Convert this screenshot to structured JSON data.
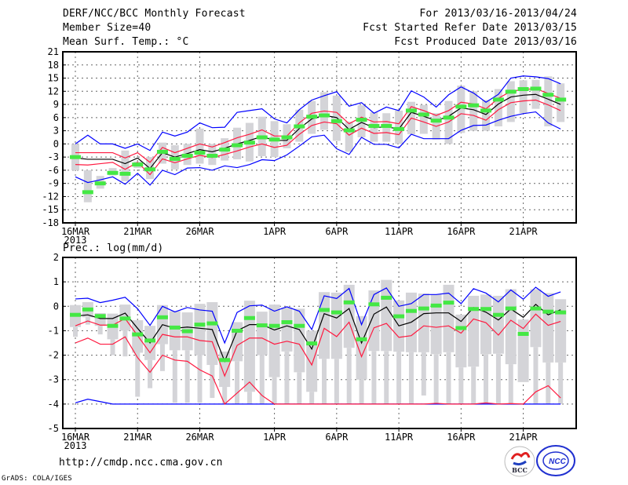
{
  "header": {
    "title": "DERF/NCC/BCC Monthly Forecast",
    "member_size": "Member Size=40",
    "variable": "Mean Surf. Temp.: °C",
    "period": "For 2013/03/16-2013/04/24",
    "started": "Fcst Started Refer Date 2013/03/15",
    "produced": "Fcst Produced Date 2013/03/16"
  },
  "footer": {
    "url": "http://cmdp.ncc.cma.gov.cn",
    "credit": "GrADS: COLA/IGES",
    "logo_bcc": "BCC",
    "logo_ncc": "NCC"
  },
  "colors": {
    "max_min": "#0000ff",
    "spread": "#ff1a40",
    "mean": "#000000",
    "member": "#44e844",
    "box": "#d4d4d8"
  },
  "chart_data": [
    {
      "type": "box-line",
      "title": "Mean Surf. Temp.: °C",
      "x_tick_labels": [
        "16MAR",
        "21MAR",
        "26MAR",
        "1APR",
        "6APR",
        "11APR",
        "16APR",
        "21APR"
      ],
      "x_tick_days": [
        0,
        5,
        10,
        16,
        21,
        26,
        31,
        36
      ],
      "year_label": "2013",
      "ylim": [
        -18,
        21
      ],
      "yticks": [
        21,
        18,
        15,
        12,
        9,
        6,
        3,
        0,
        -3,
        -6,
        -9,
        -12,
        -15,
        -18
      ],
      "grid": true,
      "n_days": 40,
      "mean": [
        -3.2,
        -3.5,
        -3.5,
        -3.5,
        -4.5,
        -3.2,
        -5.6,
        -2,
        -3,
        -2.2,
        -1.3,
        -1.8,
        -1,
        0,
        0.8,
        1.7,
        0.8,
        0.8,
        3.5,
        5.7,
        6.5,
        6.0,
        3.3,
        4.9,
        3.7,
        3.9,
        3.4,
        7.2,
        6.3,
        5.3,
        6.3,
        8.2,
        7.8,
        6.7,
        9.1,
        10.7,
        11.1,
        11.3,
        10.2,
        9.0
      ],
      "spread_upper": [
        -2,
        -2,
        -2,
        -2,
        -3.2,
        -2,
        -4.2,
        -0.8,
        -2,
        -1,
        0,
        -0.7,
        0.3,
        1.4,
        2.2,
        3.2,
        1.8,
        1.8,
        4.8,
        7,
        7.5,
        7.2,
        4.6,
        6.1,
        5,
        5.1,
        4.6,
        8.5,
        7.6,
        6.5,
        7.6,
        9.5,
        9.1,
        8,
        10.4,
        12,
        12.4,
        12.6,
        11.5,
        10.4
      ],
      "spread_lower": [
        -4.7,
        -4.8,
        -4.5,
        -4.2,
        -5.8,
        -4.2,
        -7,
        -3.4,
        -4.3,
        -3.4,
        -2.6,
        -3.1,
        -2.4,
        -1.6,
        -0.7,
        0,
        -0.8,
        -0.3,
        2.2,
        4.2,
        5,
        4.6,
        2,
        3.6,
        2.4,
        2.6,
        2.1,
        5.9,
        5,
        4,
        5,
        6.9,
        6.5,
        5.4,
        7.8,
        9.4,
        9.8,
        10,
        8.9,
        7.6
      ],
      "max": [
        0,
        2,
        0,
        0,
        -1,
        0,
        -1.5,
        2.7,
        1.8,
        2.7,
        4.8,
        3.7,
        3.8,
        7.2,
        7.6,
        8,
        5.7,
        4.8,
        7.8,
        10,
        11,
        11.9,
        8.6,
        9.4,
        7.0,
        8.4,
        7.6,
        12.1,
        10.7,
        8.4,
        11.2,
        13.0,
        11.6,
        9.5,
        11.3,
        15.0,
        15.5,
        15.3,
        14.9,
        13.7
      ],
      "min": [
        -7.5,
        -8.8,
        -8.2,
        -7.5,
        -9.2,
        -6.7,
        -9.4,
        -6,
        -7,
        -5.5,
        -5.4,
        -6,
        -5,
        -5.4,
        -4.7,
        -3.6,
        -3.8,
        -2.5,
        -0.5,
        1.6,
        2.0,
        -1.1,
        -2.4,
        1.5,
        -0.1,
        -0.1,
        -0.9,
        2.2,
        1.2,
        1.2,
        1.2,
        3.1,
        4.2,
        4.3,
        5.4,
        6.3,
        6.9,
        7.3,
        4.8,
        3.4
      ],
      "box_low": [
        -6,
        -13.3,
        -10.2,
        -7.2,
        -8.5,
        -5.5,
        -8,
        -4.5,
        -5.8,
        -4.8,
        -4.5,
        -4.8,
        -3.8,
        -3.5,
        -4,
        -2.8,
        -3,
        -1,
        0.5,
        2.3,
        3.2,
        0.7,
        -1.8,
        1.5,
        0.5,
        0.5,
        0,
        2.2,
        2.3,
        1,
        0,
        2.5,
        3,
        3,
        4,
        5,
        7,
        8,
        4,
        5
      ],
      "box_high": [
        0,
        -6,
        -7.3,
        -5.5,
        -1.5,
        -4,
        -3,
        0.3,
        -0.3,
        0,
        3.5,
        0,
        1.3,
        3.7,
        4.8,
        6.2,
        5.2,
        4.5,
        7.8,
        9.8,
        11.8,
        11,
        5.1,
        8.8,
        7.2,
        7,
        7.6,
        9.6,
        8.9,
        7,
        9.8,
        13.3,
        12,
        10,
        12.5,
        14.3,
        14.5,
        14.6,
        15.4,
        13.8
      ],
      "member": [
        -3,
        -11,
        -9,
        -6.6,
        -6.8,
        -4.7,
        -5.8,
        -1.8,
        -3.4,
        -2.7,
        -2,
        -2.7,
        -1.3,
        -0.3,
        0.3,
        1.5,
        1,
        1.5,
        4,
        6.2,
        6.5,
        5.2,
        3.1,
        5.5,
        4.1,
        4.1,
        3.4,
        7.6,
        6.7,
        5.3,
        6.0,
        8.5,
        8.8,
        7.6,
        10.1,
        11.9,
        12.5,
        12.6,
        11.2,
        10.1
      ]
    },
    {
      "type": "box-line",
      "title": "Prec.: log(mm/d)",
      "x_tick_labels": [
        "16MAR",
        "21MAR",
        "26MAR",
        "1APR",
        "6APR",
        "11APR",
        "16APR",
        "21APR"
      ],
      "x_tick_days": [
        0,
        5,
        10,
        16,
        21,
        26,
        31,
        36
      ],
      "year_label": "2013",
      "ylim": [
        -5,
        2
      ],
      "yticks": [
        2,
        1,
        0,
        -1,
        -2,
        -3,
        -4,
        -5
      ],
      "grid": true,
      "n_days": 40,
      "mean": [
        -0.4,
        -0.35,
        -0.5,
        -0.5,
        -0.28,
        -0.9,
        -1.5,
        -0.75,
        -0.9,
        -0.85,
        -0.9,
        -0.95,
        -2.25,
        -1.0,
        -0.75,
        -0.75,
        -0.97,
        -0.8,
        -0.95,
        -1.75,
        -0.3,
        -0.48,
        -0.09,
        -1.5,
        -0.32,
        -0.03,
        -0.8,
        -0.65,
        -0.3,
        -0.27,
        -0.27,
        -0.62,
        -0.05,
        -0.24,
        -0.56,
        -0.11,
        -0.45,
        0.08,
        -0.35,
        -0.14
      ],
      "spread_upper": [
        -0.8,
        -0.6,
        -0.77,
        -0.77,
        -0.5,
        -1.2,
        -1.9,
        -1.15,
        -1.25,
        -1.25,
        -1.4,
        -1.45,
        -2.85,
        -1.6,
        -1.3,
        -1.3,
        -1.55,
        -1.43,
        -1.55,
        -2.4,
        -0.9,
        -1.24,
        -0.65,
        -2.06,
        -0.88,
        -0.7,
        -1.27,
        -1.2,
        -0.8,
        -0.86,
        -0.8,
        -1.1,
        -0.52,
        -0.67,
        -1.18,
        -0.57,
        -0.91,
        -0.32,
        -0.78,
        -0.62
      ],
      "spread_lower": [
        -1.5,
        -1.3,
        -1.55,
        -1.55,
        -1.25,
        -2.1,
        -2.7,
        -2.0,
        -2.2,
        -2.25,
        -2.6,
        -2.85,
        -4,
        -3.55,
        -3.1,
        -3.65,
        -4,
        -4,
        -4,
        -4,
        -4,
        -4,
        -4,
        -4,
        -4,
        -4,
        -4,
        -4,
        -4,
        -3.97,
        -4,
        -4,
        -4,
        -3.95,
        -4,
        -3.98,
        -4,
        -3.5,
        -3.25,
        -3.75
      ],
      "max": [
        0.3,
        0.33,
        0.15,
        0.25,
        0.37,
        -0.1,
        -0.78,
        0,
        -0.23,
        -0.05,
        -0.15,
        -0.2,
        -1.5,
        -0.25,
        0.02,
        0.05,
        -0.2,
        -0.02,
        -0.2,
        -0.95,
        0.43,
        0.32,
        0.73,
        -0.75,
        0.48,
        0.75,
        0,
        0.11,
        0.48,
        0.48,
        0.54,
        0.11,
        0.72,
        0.54,
        0.18,
        0.67,
        0.29,
        0.78,
        0.41,
        0.59
      ],
      "min": [
        -3.95,
        -3.8,
        -3.9,
        -4,
        -4,
        -4,
        -4,
        -4,
        -4,
        -4,
        -4,
        -4,
        -4,
        -4,
        -4,
        -4,
        -4,
        -4,
        -4,
        -4,
        -4,
        -4,
        -4,
        -4,
        -4,
        -4,
        -4,
        -4,
        -4,
        -4,
        -4,
        -4,
        -4,
        -4,
        -4,
        -4,
        -4,
        -4,
        -4,
        -4
      ],
      "whisker_low": [
        -1.25,
        -0.75,
        -1.15,
        -2.0,
        -2.05,
        -3.7,
        -3.35,
        -2.65,
        -3.95,
        -3.95,
        -3.95,
        -3.75,
        -4,
        -4,
        -4,
        -4,
        -4,
        -4,
        -4,
        -4,
        -4,
        -4,
        -4,
        -4,
        -4,
        -4,
        -4,
        -4,
        -3.65,
        -4,
        -4,
        -4,
        -4,
        -4,
        -4,
        -4,
        -3.1,
        -4,
        -4,
        -4
      ],
      "box_low": [
        -0.85,
        -0.45,
        -0.8,
        -1.35,
        -1.0,
        -1.9,
        -2.2,
        -1.55,
        -1.8,
        -1.8,
        -2.0,
        -2.4,
        -3.3,
        -2.25,
        -3.5,
        -2.0,
        -2.9,
        -1.85,
        -2.7,
        -3.5,
        -2.15,
        -2.15,
        -1.7,
        -3.0,
        -1.83,
        -1.83,
        -1.86,
        -1.88,
        -1.88,
        -1.96,
        -1.88,
        -2.5,
        -2.47,
        -1.96,
        -1.94,
        -2.37,
        -3.1,
        -1.67,
        -2.3,
        -2.3
      ],
      "box_high": [
        0.05,
        0.17,
        -0.28,
        -0.3,
        0.07,
        -0.57,
        -0.8,
        0.05,
        -0.2,
        -0.25,
        0.1,
        0.17,
        -1.85,
        -0.65,
        0.23,
        -0.22,
        0.07,
        -0.05,
        -0.1,
        -1.0,
        0.58,
        0.56,
        0.88,
        -0.4,
        0.65,
        1.08,
        0.24,
        0.56,
        0.52,
        0.48,
        0.88,
        -0.34,
        0.43,
        0.48,
        0.43,
        0.7,
        -0.54,
        0.7,
        0.54,
        0.29
      ],
      "member": [
        -0.35,
        -0.13,
        -0.4,
        -0.8,
        -0.5,
        -1.15,
        -1.4,
        -0.45,
        -0.87,
        -1.02,
        -0.75,
        -0.7,
        -2.2,
        -1.0,
        -0.48,
        -0.78,
        -0.8,
        -0.65,
        -0.8,
        -1.52,
        -0.15,
        -0.25,
        0.16,
        -1.35,
        0.08,
        0.35,
        -0.41,
        -0.19,
        -0.09,
        0.03,
        0.15,
        -0.89,
        -0.11,
        -0.11,
        -0.35,
        -0.09,
        -1.13,
        -0.09,
        -0.22,
        -0.25
      ]
    }
  ]
}
